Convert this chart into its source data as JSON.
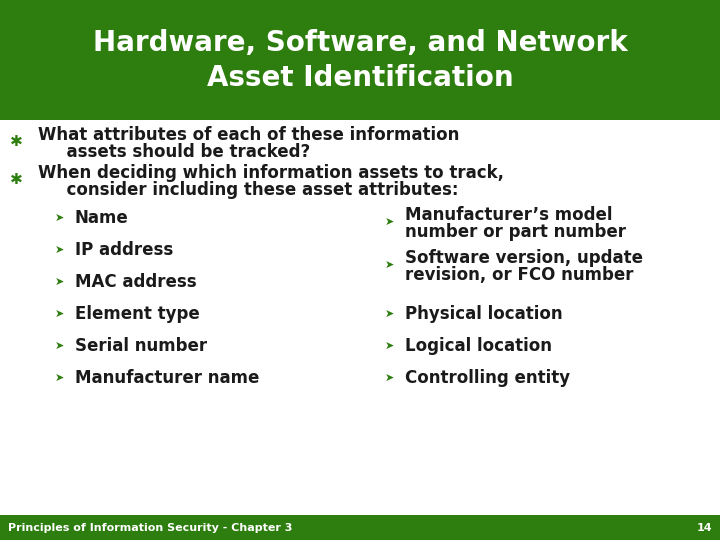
{
  "title_line1": "Hardware, Software, and Network",
  "title_line2": "Asset Identification",
  "title_bg_color": "#2D7D0F",
  "title_text_color": "#FFFFFF",
  "body_bg_color": "#FFFFFF",
  "footer_bg_color": "#2D7D0F",
  "footer_text": "Principles of Information Security - Chapter 3",
  "footer_page": "14",
  "footer_text_color": "#FFFFFF",
  "bullet1_line1": "What attributes of each of these information",
  "bullet1_line2": "  assets should be tracked?",
  "bullet2_line1": "When deciding which information assets to track,",
  "bullet2_line2": "  consider including these asset attributes:",
  "left_items": [
    "Name",
    "IP address",
    "MAC address",
    "Element type",
    "Serial number",
    "Manufacturer name"
  ],
  "right_item1_line1": "Manufacturer’s model",
  "right_item1_line2": "number or part number",
  "right_item2_line1": "Software version, update",
  "right_item2_line2": "revision, or FCO number",
  "right_item3": "Physical location",
  "right_item4": "Logical location",
  "right_item5": "Controlling entity",
  "body_text_color": "#1a1a1a",
  "sub_bullet_color": "#2D7D0F"
}
